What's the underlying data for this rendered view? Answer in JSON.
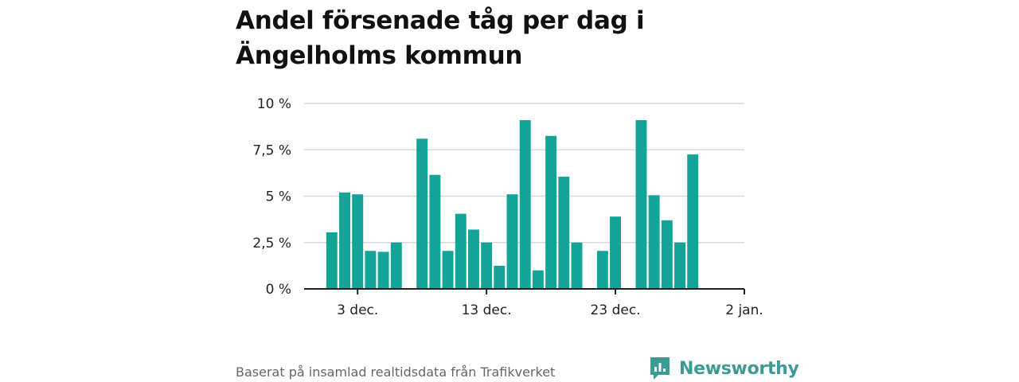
{
  "title_lines": [
    "Andel försenade tåg per dag i",
    "Ängelholms kommun"
  ],
  "footer": "Baserat på insamlad realtidsdata från Trafikverket",
  "brand": "Newsworthy",
  "colors": {
    "bar": "#12a497",
    "grid": "#d9d9d9",
    "axis": "#222222",
    "brand": "#3d9b95"
  },
  "chart_data": {
    "type": "bar",
    "title": "Andel försenade tåg per dag i Ängelholms kommun",
    "x_unit": "date (December → 2 January)",
    "xlabel": "",
    "ylabel": "",
    "x_ticks": [
      {
        "day": 3,
        "label": "3 dec."
      },
      {
        "day": 13,
        "label": "13 dec."
      },
      {
        "day": 23,
        "label": "23 dec."
      },
      {
        "day": 33,
        "label": "2 jan."
      }
    ],
    "y_ticks": [
      {
        "value": 0,
        "label": "0 %"
      },
      {
        "value": 2.5,
        "label": "2,5 %"
      },
      {
        "value": 5,
        "label": "5 %"
      },
      {
        "value": 7.5,
        "label": "7,5 %"
      },
      {
        "value": 10,
        "label": "10 %"
      }
    ],
    "ylim": [
      0,
      10
    ],
    "xlim": [
      -1.15,
      33
    ],
    "grid": true,
    "series": [
      {
        "values": [
          {
            "day": 1,
            "value": 3.05
          },
          {
            "day": 2,
            "value": 5.2
          },
          {
            "day": 3,
            "value": 5.1
          },
          {
            "day": 4,
            "value": 2.05
          },
          {
            "day": 5,
            "value": 2.0
          },
          {
            "day": 6,
            "value": 2.5
          },
          {
            "day": 8,
            "value": 8.1
          },
          {
            "day": 9,
            "value": 6.15
          },
          {
            "day": 10,
            "value": 2.05
          },
          {
            "day": 11,
            "value": 4.05
          },
          {
            "day": 12,
            "value": 3.2
          },
          {
            "day": 13,
            "value": 2.5
          },
          {
            "day": 14,
            "value": 1.25
          },
          {
            "day": 15,
            "value": 5.1
          },
          {
            "day": 16,
            "value": 9.1
          },
          {
            "day": 17,
            "value": 1.0
          },
          {
            "day": 18,
            "value": 8.25
          },
          {
            "day": 19,
            "value": 6.05
          },
          {
            "day": 20,
            "value": 2.5
          },
          {
            "day": 22,
            "value": 2.05
          },
          {
            "day": 23,
            "value": 3.9
          },
          {
            "day": 25,
            "value": 9.1
          },
          {
            "day": 26,
            "value": 5.05
          },
          {
            "day": 27,
            "value": 3.7
          },
          {
            "day": 28,
            "value": 2.5
          },
          {
            "day": 29,
            "value": 7.25
          }
        ]
      }
    ]
  }
}
